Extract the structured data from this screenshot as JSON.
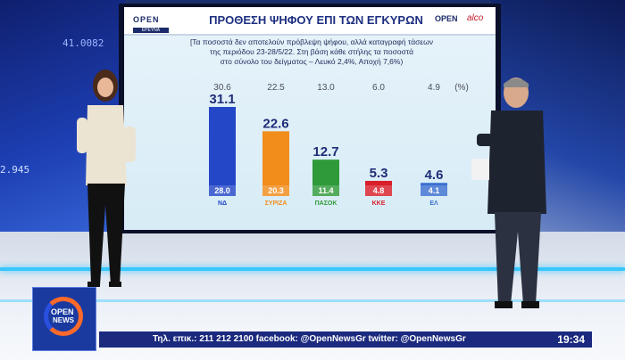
{
  "screen": {
    "title": "ΠΡΟΘΕΣΗ ΨΗΦΟΥ ΕΠΙ ΤΩΝ ΕΓΚΥΡΩΝ",
    "brand_left_top": "OPEN",
    "brand_left_bottom": "ΕΡΕΥΝΑ",
    "brand_right": "OPEN",
    "brand_right2": "alco",
    "note_lines": [
      "[Τα ποσοστά δεν αποτελούν πρόβλεψη ψήφου, αλλά καταγραφή τάσεων",
      "της περιόδου 23-28/5/22. Στη βάση κάθε στήλης τα ποσοστά",
      "στο σύνολο του δείγματος – Λευκό 2,4%, Αποχή 7,6%)"
    ]
  },
  "chart_data": {
    "type": "bar",
    "title": "ΠΡΟΘΕΣΗ ΨΗΦΟΥ ΕΠΙ ΤΩΝ ΕΓΚΥΡΩΝ",
    "categories": [
      "ΝΔ",
      "ΣΥΡΙΖΑ",
      "ΠΑΣΟΚ",
      "ΚΚΕ",
      "ΕΛ"
    ],
    "series": [
      {
        "values": [
          31.1,
          22.6,
          12.7,
          5.3,
          4.6
        ]
      },
      {
        "values": [
          28.0,
          20.3,
          11.4,
          4.8,
          4.1
        ]
      }
    ],
    "previous": [
      30.6,
      22.5,
      13.0,
      6.0,
      4.9
    ],
    "previous_unit": "(%)",
    "bar_labels": [
      "31.1",
      "22.6",
      "12.7",
      "5.3",
      "4.6"
    ],
    "base_labels": [
      "28.0",
      "20.3",
      "11.4",
      "4.8",
      "4.1"
    ],
    "previous_labels": [
      "30.6",
      "22.5",
      "13.0",
      "6.0",
      "4.9"
    ],
    "logo_labels": [
      "ΝΔ",
      "ΣΥΡΙΖΑ",
      "ΠΑΣΟΚ",
      "KKE",
      "ΕΛ"
    ],
    "colors": [
      "#2447c8",
      "#f28c1b",
      "#2f9a3a",
      "#d81f2a",
      "#3a6fd0"
    ],
    "ylim": [
      0,
      35
    ]
  },
  "studio": {
    "wall_number_1": "41.0082",
    "wall_number_2": "2.945"
  },
  "channel": {
    "logo_line1": "OPEN",
    "logo_line2": "NEWS",
    "ticker": "Τηλ. επικ.: 211 212 2100 facebook: @OpenNewsGr twitter: @OpenNewsGr",
    "clock": "19:34"
  }
}
